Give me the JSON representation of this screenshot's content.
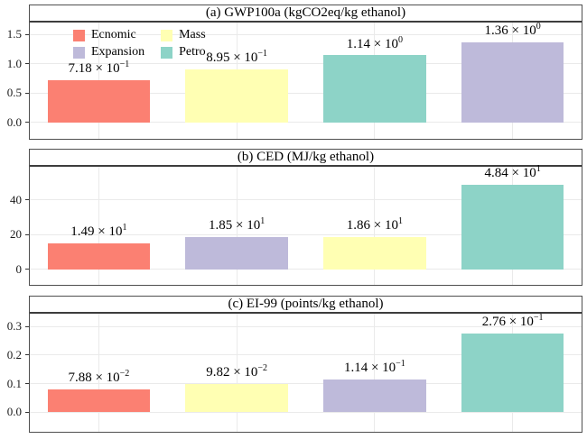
{
  "colors": {
    "background": "#FFFFFF",
    "panel_border": "#4F4F4F",
    "strip_underline": "#3D3D3D",
    "gridline": "#EAEAEA",
    "tick": "#333333",
    "text": "#000000",
    "series": {
      "Ecnomic": "#FB8072",
      "Expansion": "#BEBADA",
      "Mass": "#FFFFB3",
      "Petro": "#8DD3C7"
    }
  },
  "legend": {
    "visible_on_panel": "a",
    "items": [
      {
        "label": "Ecnomic",
        "color": "#FB8072"
      },
      {
        "label": "Expansion",
        "color": "#BEBADA"
      },
      {
        "label": "Mass",
        "color": "#FFFFB3"
      },
      {
        "label": "Petro",
        "color": "#8DD3C7"
      }
    ]
  },
  "chart_data": [
    {
      "type": "bar",
      "panel": "a",
      "title": "(a) GWP100a (kgCO2eq/kg ethanol)",
      "categories": [
        "Ecnomic",
        "Mass",
        "Petro",
        "Expansion"
      ],
      "values": [
        0.718,
        0.895,
        1.14,
        1.36
      ],
      "bar_labels": [
        {
          "mantissa": "7.18",
          "exponent": "−1"
        },
        {
          "mantissa": "8.95",
          "exponent": "−1"
        },
        {
          "mantissa": "1.14",
          "exponent": "0"
        },
        {
          "mantissa": "1.36",
          "exponent": "0"
        }
      ],
      "ylim": [
        -0.28,
        1.7
      ],
      "yticks": [
        0,
        0.5,
        1.0,
        1.5
      ],
      "ytick_labels": [
        "0.0",
        "0.5",
        "1.0",
        "1.5"
      ],
      "grid": true,
      "legend_visible": true,
      "legend_position": "top-left"
    },
    {
      "type": "bar",
      "panel": "b",
      "title": "(b) CED (MJ/kg ethanol)",
      "categories": [
        "Ecnomic",
        "Expansion",
        "Mass",
        "Petro"
      ],
      "values": [
        14.9,
        18.5,
        18.6,
        48.4
      ],
      "bar_labels": [
        {
          "mantissa": "1.49",
          "exponent": "1"
        },
        {
          "mantissa": "1.85",
          "exponent": "1"
        },
        {
          "mantissa": "1.86",
          "exponent": "1"
        },
        {
          "mantissa": "4.84",
          "exponent": "1"
        }
      ],
      "ylim": [
        -9,
        59
      ],
      "yticks": [
        0,
        20,
        40
      ],
      "ytick_labels": [
        "0",
        "20",
        "40"
      ],
      "grid": true,
      "legend_visible": false
    },
    {
      "type": "bar",
      "panel": "c",
      "title": "(c) EI-99 (points/kg ethanol)",
      "categories": [
        "Ecnomic",
        "Mass",
        "Expansion",
        "Petro"
      ],
      "values": [
        0.0788,
        0.0982,
        0.114,
        0.276
      ],
      "bar_labels": [
        {
          "mantissa": "7.88",
          "exponent": "−2"
        },
        {
          "mantissa": "9.82",
          "exponent": "−2"
        },
        {
          "mantissa": "1.14",
          "exponent": "−1"
        },
        {
          "mantissa": "2.76",
          "exponent": "−1"
        }
      ],
      "ylim": [
        -0.068,
        0.345
      ],
      "yticks": [
        0,
        0.1,
        0.2,
        0.3
      ],
      "ytick_labels": [
        "0.0",
        "0.1",
        "0.2",
        "0.3"
      ],
      "grid": true,
      "legend_visible": false
    }
  ],
  "times_symbol": " × 10"
}
